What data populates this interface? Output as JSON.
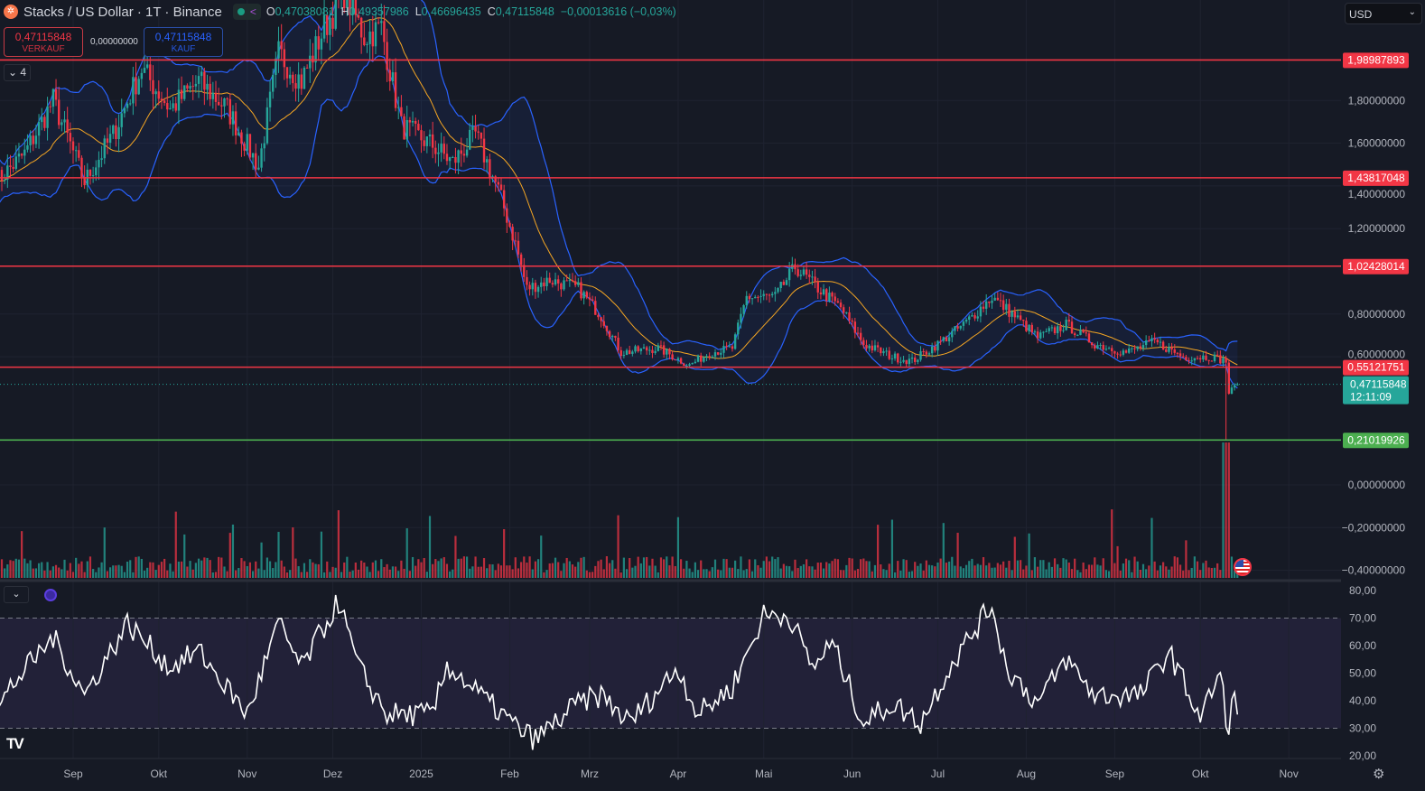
{
  "header": {
    "title": "Stacks / US Dollar · 1T · Binance",
    "ohlc": {
      "o_label": "O",
      "o": "0,47038081",
      "h_label": "H",
      "h": "0,49357986",
      "l_label": "L",
      "l": "0,46696435",
      "c_label": "C",
      "c": "0,47115848",
      "change": "−0,00013616 (−0,03%)"
    }
  },
  "trade": {
    "sell_price": "0,47115848",
    "sell_label": "VERKAUF",
    "spread": "0,00000000",
    "buy_price": "0,47115848",
    "buy_label": "KAUF"
  },
  "indicators_toggle": "4",
  "currency": "USD",
  "icons": {
    "logo": "stacks-logo",
    "share": "share-icon",
    "settings": "gear-icon",
    "flag": "us-flag-icon",
    "brand": "tradingview-logo"
  },
  "colors": {
    "up": "#26a69a",
    "down": "#f23645",
    "bb": "#2962ff",
    "ma": "#f5a623",
    "level_red": "#f23645",
    "level_green": "#4caf50",
    "rsi": "#ffffff"
  },
  "chart_data": {
    "type": "candlestick",
    "price_axis": {
      "ticks": [
        "1,80000000",
        "1,60000000",
        "1,40000000",
        "1,20000000",
        "0,80000000",
        "0,60000000",
        "0,00000000",
        "−0,20000000",
        "−0,40000000"
      ],
      "tick_values": [
        1.8,
        1.6,
        1.4,
        1.2,
        0.8,
        0.6,
        0.0,
        -0.2,
        -0.4
      ]
    },
    "time_axis": [
      {
        "label": "Sep",
        "date": "2024-09-01"
      },
      {
        "label": "Okt",
        "date": "2024-10-01"
      },
      {
        "label": "Nov",
        "date": "2024-11-01"
      },
      {
        "label": "Dez",
        "date": "2024-12-01"
      },
      {
        "label": "2025",
        "date": "2025-01-01"
      },
      {
        "label": "Feb",
        "date": "2025-02-01"
      },
      {
        "label": "Mrz",
        "date": "2025-03-01"
      },
      {
        "label": "Apr",
        "date": "2025-04-01"
      },
      {
        "label": "Mai",
        "date": "2025-05-01"
      },
      {
        "label": "Jun",
        "date": "2025-06-01"
      },
      {
        "label": "Jul",
        "date": "2025-07-01"
      },
      {
        "label": "Aug",
        "date": "2025-08-01"
      },
      {
        "label": "Sep",
        "date": "2025-09-01"
      },
      {
        "label": "Okt",
        "date": "2025-10-01"
      },
      {
        "label": "Nov",
        "date": "2025-11-01"
      }
    ],
    "levels": [
      {
        "value": 1.98987893,
        "label": "1,98987893",
        "color": "#f23645"
      },
      {
        "value": 1.43817048,
        "label": "1,43817048",
        "color": "#f23645"
      },
      {
        "value": 1.02428014,
        "label": "1,02428014",
        "color": "#f23645"
      },
      {
        "value": 0.55121751,
        "label": "0,55121751",
        "color": "#f23645"
      },
      {
        "value": 0.21019926,
        "label": "0,21019926",
        "color": "#4caf50"
      }
    ],
    "last_price": {
      "value": 0.47115848,
      "label": "0,47115848",
      "countdown": "12:11:09"
    },
    "close_approx": [
      [
        "2024-08-05",
        1.42
      ],
      [
        "2024-08-15",
        1.55
      ],
      [
        "2024-08-25",
        1.8
      ],
      [
        "2024-09-05",
        1.42
      ],
      [
        "2024-09-15",
        1.64
      ],
      [
        "2024-09-25",
        1.95
      ],
      [
        "2024-10-05",
        1.76
      ],
      [
        "2024-10-15",
        1.89
      ],
      [
        "2024-10-25",
        1.76
      ],
      [
        "2024-11-05",
        1.49
      ],
      [
        "2024-11-12",
        2.02
      ],
      [
        "2024-11-20",
        1.89
      ],
      [
        "2024-11-28",
        2.14
      ],
      [
        "2024-12-05",
        2.31
      ],
      [
        "2024-12-12",
        2.1
      ],
      [
        "2024-12-18",
        2.14
      ],
      [
        "2024-12-25",
        1.68
      ],
      [
        "2025-01-05",
        1.59
      ],
      [
        "2025-01-12",
        1.51
      ],
      [
        "2025-01-20",
        1.64
      ],
      [
        "2025-01-28",
        1.38
      ],
      [
        "2025-02-03",
        1.13
      ],
      [
        "2025-02-07",
        0.92
      ],
      [
        "2025-02-15",
        0.96
      ],
      [
        "2025-02-25",
        0.92
      ],
      [
        "2025-03-05",
        0.79
      ],
      [
        "2025-03-12",
        0.62
      ],
      [
        "2025-03-25",
        0.64
      ],
      [
        "2025-04-05",
        0.56
      ],
      [
        "2025-04-12",
        0.62
      ],
      [
        "2025-04-20",
        0.64
      ],
      [
        "2025-04-25",
        0.88
      ],
      [
        "2025-05-05",
        0.88
      ],
      [
        "2025-05-12",
        1.02
      ],
      [
        "2025-05-20",
        0.92
      ],
      [
        "2025-05-28",
        0.83
      ],
      [
        "2025-06-05",
        0.66
      ],
      [
        "2025-06-15",
        0.6
      ],
      [
        "2025-06-22",
        0.58
      ],
      [
        "2025-07-01",
        0.66
      ],
      [
        "2025-07-10",
        0.75
      ],
      [
        "2025-07-20",
        0.88
      ],
      [
        "2025-07-28",
        0.79
      ],
      [
        "2025-08-05",
        0.69
      ],
      [
        "2025-08-15",
        0.75
      ],
      [
        "2025-08-25",
        0.66
      ],
      [
        "2025-09-05",
        0.62
      ],
      [
        "2025-09-15",
        0.67
      ],
      [
        "2025-09-25",
        0.6
      ],
      [
        "2025-10-05",
        0.6
      ],
      [
        "2025-10-10",
        0.58
      ],
      [
        "2025-10-11",
        0.43
      ],
      [
        "2025-10-14",
        0.47
      ]
    ],
    "flash_low": {
      "date": "2025-10-10",
      "value": 0.21
    },
    "rsi": {
      "axis_ticks": [
        "80,00",
        "70,00",
        "60,00",
        "50,00",
        "40,00",
        "30,00",
        "20,00"
      ],
      "tick_values": [
        80,
        70,
        60,
        50,
        40,
        30,
        20
      ],
      "upper": 70,
      "lower": 30,
      "values_approx": [
        [
          "2024-08-05",
          35
        ],
        [
          "2024-08-10",
          45
        ],
        [
          "2024-08-25",
          63
        ],
        [
          "2024-09-05",
          42
        ],
        [
          "2024-09-20",
          68
        ],
        [
          "2024-10-05",
          52
        ],
        [
          "2024-10-15",
          58
        ],
        [
          "2024-11-01",
          35
        ],
        [
          "2024-11-12",
          68
        ],
        [
          "2024-11-20",
          52
        ],
        [
          "2024-12-03",
          76
        ],
        [
          "2024-12-10",
          52
        ],
        [
          "2024-12-20",
          35
        ],
        [
          "2025-01-05",
          35
        ],
        [
          "2025-01-10",
          53
        ],
        [
          "2025-01-25",
          39
        ],
        [
          "2025-02-05",
          29
        ],
        [
          "2025-02-10",
          26
        ],
        [
          "2025-02-25",
          39
        ],
        [
          "2025-03-05",
          42
        ],
        [
          "2025-03-15",
          32
        ],
        [
          "2025-04-01",
          52
        ],
        [
          "2025-04-08",
          35
        ],
        [
          "2025-04-20",
          45
        ],
        [
          "2025-05-01",
          71
        ],
        [
          "2025-05-10",
          71
        ],
        [
          "2025-05-18",
          52
        ],
        [
          "2025-05-25",
          61
        ],
        [
          "2025-06-05",
          32
        ],
        [
          "2025-06-15",
          39
        ],
        [
          "2025-06-25",
          32
        ],
        [
          "2025-07-05",
          52
        ],
        [
          "2025-07-20",
          75
        ],
        [
          "2025-07-25",
          52
        ],
        [
          "2025-08-05",
          39
        ],
        [
          "2025-08-15",
          55
        ],
        [
          "2025-08-25",
          42
        ],
        [
          "2025-09-10",
          42
        ],
        [
          "2025-09-20",
          58
        ],
        [
          "2025-10-01",
          34
        ],
        [
          "2025-10-08",
          50
        ],
        [
          "2025-10-11",
          26
        ],
        [
          "2025-10-12",
          45
        ],
        [
          "2025-10-14",
          35
        ]
      ]
    },
    "overlays": [
      "Bollinger Bands",
      "Moving Average",
      "Volume"
    ]
  }
}
